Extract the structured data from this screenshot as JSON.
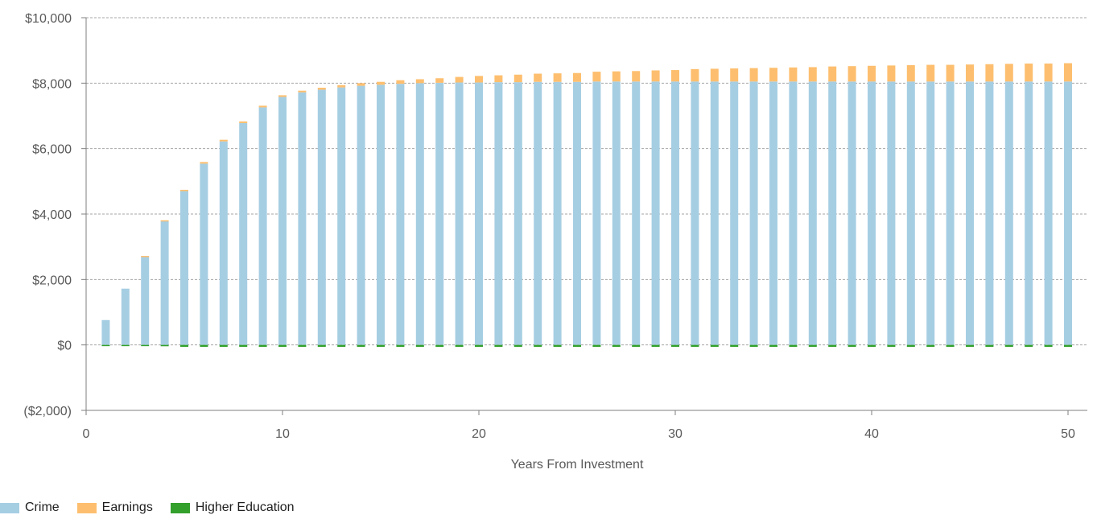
{
  "chart_data": {
    "type": "bar",
    "stacked": true,
    "xlabel": "Years From Investment",
    "ylabel": "",
    "xlim": [
      0,
      50
    ],
    "ylim": [
      -2000,
      10000
    ],
    "x_ticks": [
      0,
      10,
      20,
      30,
      40,
      50
    ],
    "y_ticks": [
      -2000,
      0,
      2000,
      4000,
      6000,
      8000,
      10000
    ],
    "y_tick_labels": [
      "($2,000)",
      "$0",
      "$2,000",
      "$4,000",
      "$6,000",
      "$8,000",
      "$10,000"
    ],
    "grid": true,
    "legend_position": "bottom-left",
    "x": [
      1,
      2,
      3,
      4,
      5,
      6,
      7,
      8,
      9,
      10,
      11,
      12,
      13,
      14,
      15,
      16,
      17,
      18,
      19,
      20,
      21,
      22,
      23,
      24,
      25,
      26,
      27,
      28,
      29,
      30,
      31,
      32,
      33,
      34,
      35,
      36,
      37,
      38,
      39,
      40,
      41,
      42,
      43,
      44,
      45,
      46,
      47,
      48,
      49,
      50
    ],
    "series": [
      {
        "name": "Crime",
        "color": "#a6cee3",
        "values": [
          760,
          1720,
          2700,
          3780,
          4700,
          5540,
          6220,
          6780,
          7260,
          7580,
          7720,
          7800,
          7870,
          7920,
          7950,
          7980,
          8000,
          8010,
          8020,
          8020,
          8030,
          8030,
          8040,
          8040,
          8040,
          8050,
          8050,
          8050,
          8050,
          8050,
          8050,
          8050,
          8050,
          8050,
          8050,
          8050,
          8050,
          8050,
          8050,
          8050,
          8050,
          8050,
          8050,
          8050,
          8050,
          8050,
          8050,
          8050,
          8050,
          8050
        ]
      },
      {
        "name": "Earnings",
        "color": "#fdbf6f",
        "values": [
          0,
          0,
          20,
          30,
          40,
          50,
          50,
          50,
          50,
          50,
          50,
          60,
          70,
          80,
          90,
          110,
          120,
          140,
          170,
          200,
          210,
          230,
          250,
          260,
          270,
          300,
          310,
          320,
          340,
          350,
          380,
          390,
          400,
          410,
          420,
          430,
          440,
          460,
          470,
          480,
          490,
          500,
          510,
          510,
          520,
          530,
          540,
          550,
          550,
          560
        ]
      },
      {
        "name": "Higher Education",
        "color": "#33a02c",
        "values": [
          -5,
          -10,
          -30,
          -40,
          -60,
          -60,
          -60,
          -60,
          -60,
          -60,
          -60,
          -60,
          -60,
          -60,
          -60,
          -60,
          -60,
          -60,
          -60,
          -60,
          -60,
          -60,
          -60,
          -60,
          -60,
          -60,
          -60,
          -60,
          -60,
          -60,
          -60,
          -60,
          -60,
          -60,
          -60,
          -60,
          -60,
          -60,
          -60,
          -60,
          -60,
          -60,
          -60,
          -60,
          -60,
          -60,
          -60,
          -60,
          -60,
          -60
        ]
      }
    ]
  }
}
